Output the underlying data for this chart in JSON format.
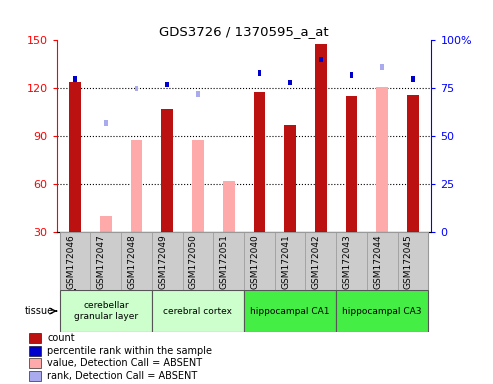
{
  "title": "GDS3726 / 1370595_a_at",
  "samples": [
    "GSM172046",
    "GSM172047",
    "GSM172048",
    "GSM172049",
    "GSM172050",
    "GSM172051",
    "GSM172040",
    "GSM172041",
    "GSM172042",
    "GSM172043",
    "GSM172044",
    "GSM172045"
  ],
  "count_values": [
    124,
    0,
    0,
    107,
    0,
    0,
    118,
    97,
    148,
    115,
    0,
    116
  ],
  "count_absent": [
    0,
    40,
    0,
    0,
    0,
    0,
    0,
    0,
    0,
    0,
    0,
    0
  ],
  "value_absent": [
    0,
    0,
    88,
    0,
    88,
    62,
    0,
    0,
    0,
    0,
    121,
    0
  ],
  "percentile_rank": [
    80,
    0,
    0,
    77,
    0,
    0,
    83,
    78,
    90,
    82,
    0,
    80
  ],
  "rank_absent": [
    0,
    57,
    75,
    0,
    72,
    0,
    0,
    0,
    0,
    0,
    86,
    0
  ],
  "tissues": [
    {
      "label": "cerebellar\ngranular layer",
      "start": 0,
      "end": 3,
      "color": "#ccffcc"
    },
    {
      "label": "cerebral cortex",
      "start": 3,
      "end": 6,
      "color": "#ccffcc"
    },
    {
      "label": "hippocampal CA1",
      "start": 6,
      "end": 9,
      "color": "#44ee44"
    },
    {
      "label": "hippocampal CA3",
      "start": 9,
      "end": 12,
      "color": "#44ee44"
    }
  ],
  "ylim_left": [
    30,
    150
  ],
  "ylim_right": [
    0,
    100
  ],
  "left_yticks": [
    30,
    60,
    90,
    120,
    150
  ],
  "right_yticks": [
    0,
    25,
    50,
    75,
    100
  ],
  "bar_color_count": "#bb1111",
  "bar_color_absent": "#ffaaaa",
  "bar_color_rank": "#0000cc",
  "bar_color_rank_absent": "#aaaaee",
  "legend_items": [
    {
      "color": "#bb1111",
      "label": "count"
    },
    {
      "color": "#0000cc",
      "label": "percentile rank within the sample"
    },
    {
      "color": "#ffaaaa",
      "label": "value, Detection Call = ABSENT"
    },
    {
      "color": "#aaaaee",
      "label": "rank, Detection Call = ABSENT"
    }
  ]
}
